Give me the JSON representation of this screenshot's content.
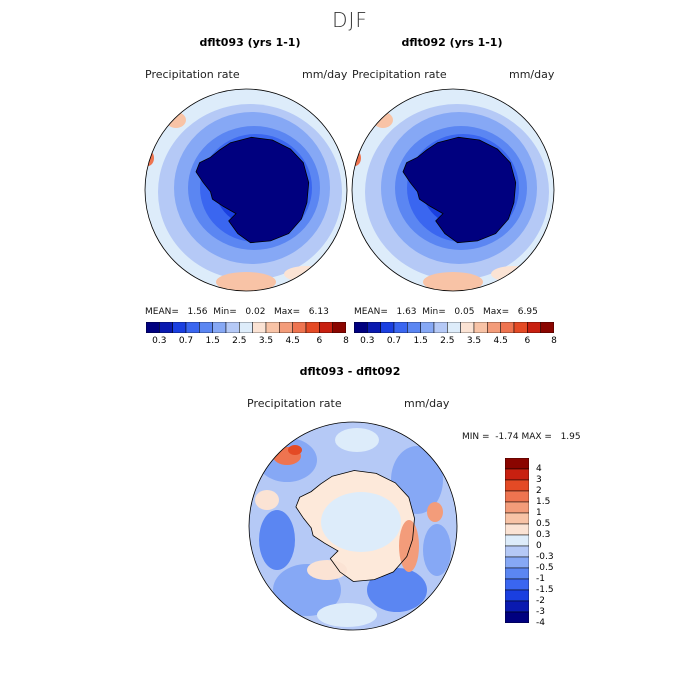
{
  "season": "DJF",
  "colors": {
    "abs_palette": [
      "#00007f",
      "#0a1ab0",
      "#1a3fe0",
      "#3a66f0",
      "#5b86f2",
      "#86a8f5",
      "#b5c9f6",
      "#ddecfa",
      "#fbe3d4",
      "#f8c3a6",
      "#f39c7a",
      "#ee7450",
      "#e44a25",
      "#c82010",
      "#8a0500"
    ],
    "diff_palette": [
      "#00007f",
      "#0a1ab0",
      "#1a3fe0",
      "#3a66f0",
      "#5b86f2",
      "#86a8f5",
      "#b5c9f6",
      "#ddecfa",
      "#fbe3d4",
      "#f8c3a6",
      "#f39c7a",
      "#ee7450",
      "#e44a25",
      "#c82010",
      "#8a0500"
    ],
    "coastline": "#000000",
    "land_interior_panel1": "#00007f",
    "land_interior_panel3": "#fde9da"
  },
  "panels": [
    {
      "title": "dflt093 (yrs 1-1)",
      "var_label": "Precipitation rate",
      "units": "mm/day",
      "mean_label": "MEAN=",
      "mean": "1.56",
      "min_label": "Min=",
      "min": "0.02",
      "max_label": "Max=",
      "max": "6.13"
    },
    {
      "title": "dflt092 (yrs 1-1)",
      "var_label": "Precipitation rate",
      "units": "mm/day",
      "mean_label": "MEAN=",
      "mean": "1.63",
      "min_label": "Min=",
      "min": "0.05",
      "max_label": "Max=",
      "max": "6.95"
    }
  ],
  "abs_ticks": [
    "0.3",
    "0.7",
    "1.5",
    "2.5",
    "3.5",
    "4.5",
    "6",
    "8"
  ],
  "diff": {
    "title": "dflt093 - dflt092",
    "var_label": "Precipitation rate",
    "units": "mm/day",
    "min_label": "MIN =",
    "min": "-1.74",
    "max_label": "MAX =",
    "max": "1.95",
    "ticks": [
      "4",
      "3",
      "2",
      "1.5",
      "1",
      "0.5",
      "0.3",
      "0",
      "-0.3",
      "-0.5",
      "-1",
      "-1.5",
      "-2",
      "-3",
      "-4"
    ]
  }
}
